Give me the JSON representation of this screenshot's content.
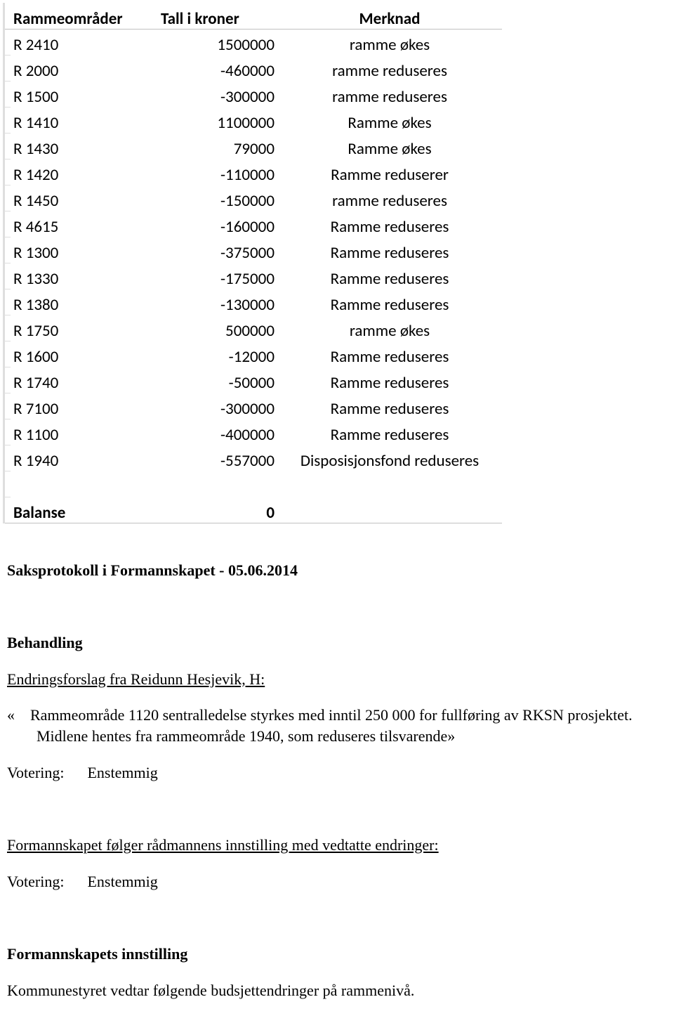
{
  "table": {
    "headers": {
      "c1": "Rammeområder",
      "c2": "Tall i kroner",
      "c3": "Merknad"
    },
    "rows": [
      {
        "c1": "R 2410",
        "c2": "1500000",
        "c3": "ramme økes"
      },
      {
        "c1": "R 2000",
        "c2": "-460000",
        "c3": "ramme reduseres"
      },
      {
        "c1": "R 1500",
        "c2": "-300000",
        "c3": "ramme reduseres"
      },
      {
        "c1": "R 1410",
        "c2": "1100000",
        "c3": "Ramme økes"
      },
      {
        "c1": "R 1430",
        "c2": "79000",
        "c3": "Ramme økes"
      },
      {
        "c1": "R 1420",
        "c2": "-110000",
        "c3": "Ramme  reduserer"
      },
      {
        "c1": "R 1450",
        "c2": "-150000",
        "c3": "ramme reduseres"
      },
      {
        "c1": "R 4615",
        "c2": "-160000",
        "c3": "Ramme reduseres"
      },
      {
        "c1": "R 1300",
        "c2": "-375000",
        "c3": "Ramme reduseres"
      },
      {
        "c1": "R 1330",
        "c2": "-175000",
        "c3": "Ramme reduseres"
      },
      {
        "c1": "R 1380",
        "c2": "-130000",
        "c3": "Ramme reduseres"
      },
      {
        "c1": "R 1750",
        "c2": "500000",
        "c3": "ramme økes"
      },
      {
        "c1": "R 1600",
        "c2": "-12000",
        "c3": "Ramme reduseres"
      },
      {
        "c1": "R 1740",
        "c2": "-50000",
        "c3": "Ramme reduseres"
      },
      {
        "c1": "R 7100",
        "c2": "-300000",
        "c3": "Ramme reduseres"
      },
      {
        "c1": "R 1100",
        "c2": "-400000",
        "c3": "Ramme reduseres"
      },
      {
        "c1": "R 1940",
        "c2": "-557000",
        "c3": "Disposisjonsfond reduseres"
      }
    ],
    "balance": {
      "label": "Balanse",
      "value": "0"
    }
  },
  "doc": {
    "title": "Saksprotokoll i Formannskapet - 05.06.2014",
    "behandling": "Behandling",
    "endringsforslag": "Endringsforslag fra Reidunn Hesjevik, H:",
    "proposal": "«    Rammeområde 1120 sentralledelse styrkes med inntil 250 000 for fullføring av RKSN prosjektet. Midlene hentes fra rammeområde 1940, som reduseres tilsvarende»",
    "votering_label": "Votering:",
    "votering_value": "Enstemmig",
    "fskap_line": "Formannskapet følger rådmannens innstilling med vedtatte endringer:",
    "innstilling": "Formannskapets innstilling",
    "vedtak": "Kommunestyret vedtar følgende budsjettendringer på rammenivå."
  }
}
